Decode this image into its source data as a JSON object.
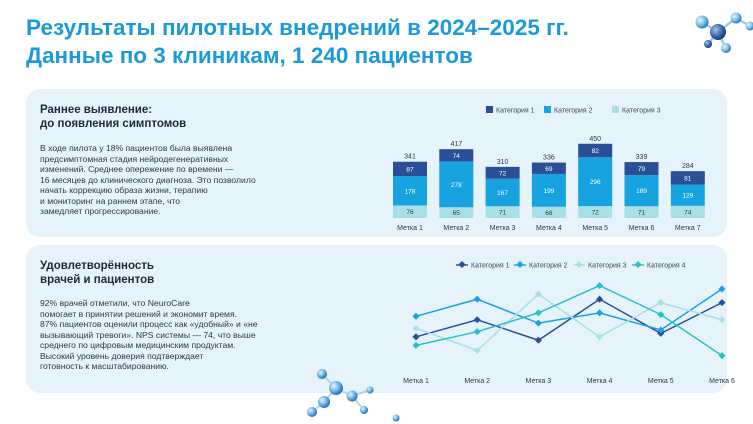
{
  "header": {
    "title_line1": "Результаты пилотных внедрений в 2024–2025 гг.",
    "title_line2": "Данные по 3 клиникам, 1 240 пациентов"
  },
  "early_detection": {
    "heading_line1": "Раннее выявление:",
    "heading_line2": "до появления симптомов",
    "body_lines": [
      "В ходе пилота у 18% пациентов была выявлена",
      "предсимптомная стадия нейродегенеративных",
      "изменений. Среднее опережение по времени —",
      "16 месяцев до клинического диагноза. Это позволило",
      "начать коррекцию образа жизни, терапию",
      "и мониторинг на раннем этапе, что",
      "замедляет прогрессирование."
    ]
  },
  "satisfaction": {
    "heading_line1": "Удовлетворённость",
    "heading_line2": "врачей и пациентов",
    "body_lines": [
      "92% врачей отметили, что NeuroCare",
      "помогает в принятии решений и экономит время.",
      "87% пациентов оценили процесс как «удобный» и «не",
      "вызывающий тревоги». NPS системы — 74, что выше",
      "среднего по цифровым медицинским продуктам.",
      "Высокий уровень доверия подтверждает",
      "готовность к масштабированию."
    ]
  },
  "colors": {
    "title": "#1a9ad6",
    "card_bg": "#e6f3fb",
    "series1": "#2b4f96",
    "series2": "#17a2e0",
    "series3": "#a9dfe7",
    "series4": "#27c0c9"
  },
  "chart_data": [
    {
      "type": "bar",
      "stacked": true,
      "categories": [
        "Метка 1",
        "Метка 2",
        "Метка 3",
        "Метка 4",
        "Метка 5",
        "Метка 6",
        "Метка 7"
      ],
      "series": [
        {
          "name": "Категория 1",
          "values": [
            87,
            74,
            72,
            69,
            82,
            79,
            81
          ]
        },
        {
          "name": "Категория 2",
          "values": [
            178,
            278,
            167,
            199,
            296,
            189,
            129
          ]
        },
        {
          "name": "Категория 3",
          "values": [
            76,
            65,
            71,
            68,
            72,
            71,
            74
          ]
        }
      ],
      "totals": [
        341,
        417,
        310,
        336,
        450,
        339,
        284
      ],
      "legend_position": "top-right",
      "grid": false
    },
    {
      "type": "line",
      "categories": [
        "Метка 1",
        "Метка 2",
        "Метка 3",
        "Метка 4",
        "Метка 5",
        "Метка 6"
      ],
      "series": [
        {
          "name": "Категория 1",
          "values": [
            2.0,
            3.0,
            1.8,
            4.2,
            2.2,
            4.0
          ]
        },
        {
          "name": "Категория 2",
          "values": [
            3.2,
            4.2,
            2.8,
            3.4,
            2.4,
            4.8
          ]
        },
        {
          "name": "Категория 3",
          "values": [
            2.5,
            1.2,
            4.5,
            2.0,
            4.0,
            3.0
          ]
        },
        {
          "name": "Категория 4",
          "values": [
            1.5,
            2.3,
            3.4,
            5.0,
            3.3,
            0.9
          ]
        }
      ],
      "ylim": [
        0,
        5.5
      ],
      "legend_position": "top",
      "grid": false
    }
  ]
}
